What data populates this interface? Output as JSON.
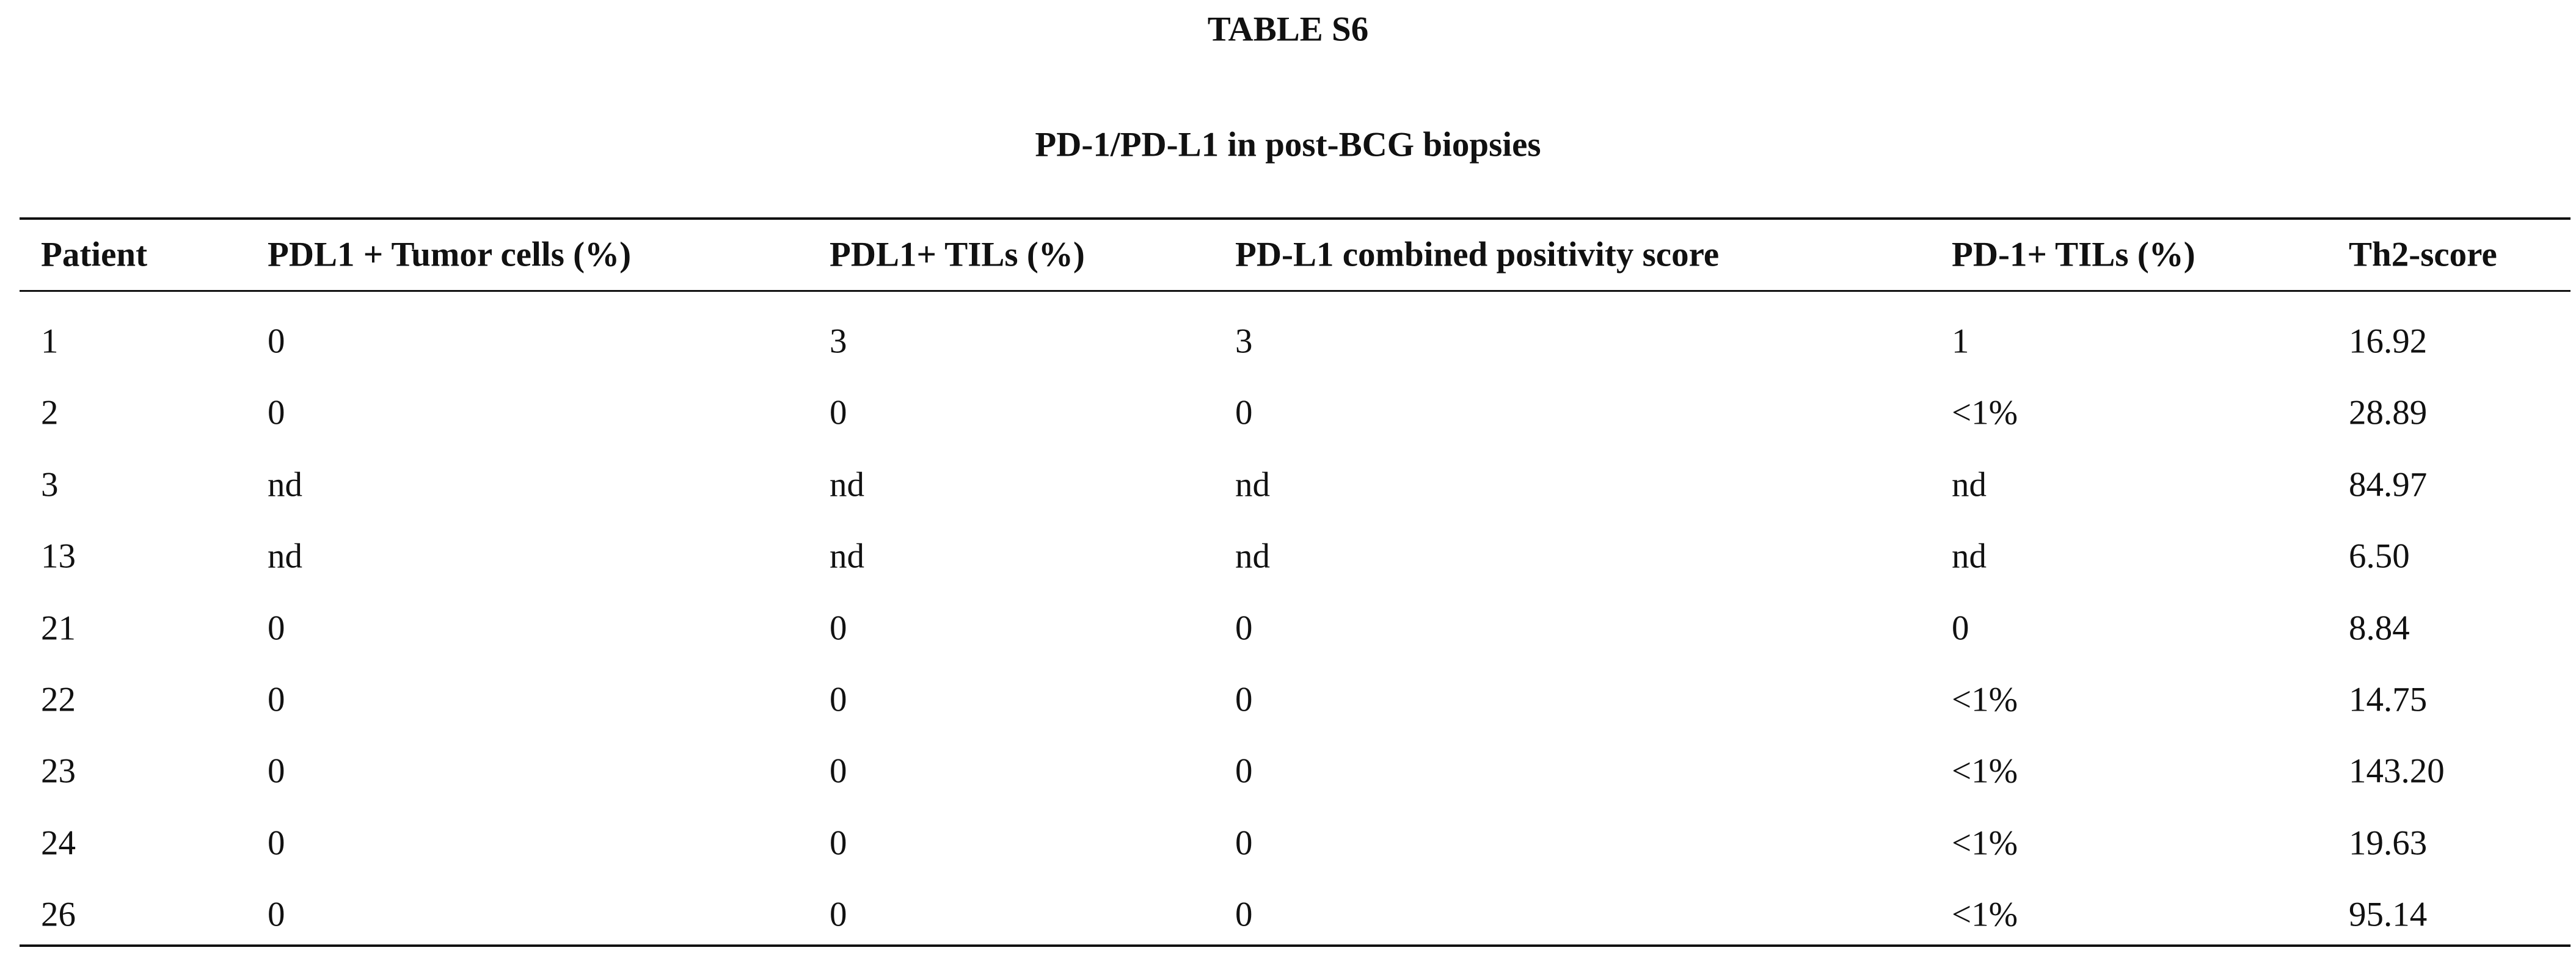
{
  "header": {
    "title": "TABLE S6",
    "subtitle": "PD-1/PD-L1 in post-BCG biopsies"
  },
  "table": {
    "columns": [
      "Patient",
      "PDL1 + Tumor cells (%)",
      "PDL1+ TILs (%)",
      "PD-L1 combined positivity score",
      "PD-1+ TILs (%)",
      "Th2-score"
    ],
    "rows": [
      [
        "1",
        "0",
        "3",
        "3",
        "1",
        "16.92"
      ],
      [
        "2",
        "0",
        "0",
        "0",
        "<1%",
        "28.89"
      ],
      [
        "3",
        "nd",
        "nd",
        "nd",
        "nd",
        "84.97"
      ],
      [
        "13",
        "nd",
        "nd",
        "nd",
        "nd",
        "6.50"
      ],
      [
        "21",
        "0",
        "0",
        "0",
        "0",
        "8.84"
      ],
      [
        "22",
        "0",
        "0",
        "0",
        "<1%",
        "14.75"
      ],
      [
        "23",
        "0",
        "0",
        "0",
        "<1%",
        "143.20"
      ],
      [
        "24",
        "0",
        "0",
        "0",
        "<1%",
        "19.63"
      ],
      [
        "26",
        "0",
        "0",
        "0",
        "<1%",
        "95.14"
      ]
    ]
  }
}
